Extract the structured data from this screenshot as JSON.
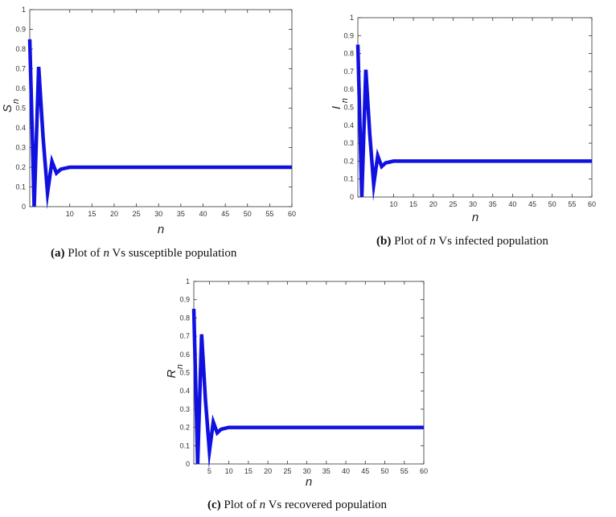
{
  "chart_data": [
    {
      "type": "line",
      "ylabel": "S",
      "ylabel_sub": "n",
      "xlabel": "n",
      "caption": {
        "tag": "(a)",
        "pre": "Plot of",
        "var": "n",
        "post": "Vs susceptible population"
      },
      "xlim": [
        1,
        60
      ],
      "ylim": [
        0,
        1
      ],
      "xticks": [
        10,
        15,
        20,
        25,
        30,
        35,
        40,
        45,
        50,
        55,
        60
      ],
      "yticks": [
        0,
        0.1,
        0.2,
        0.3,
        0.4,
        0.5,
        0.6,
        0.7,
        0.8,
        0.9,
        1
      ],
      "color": "#1010e0",
      "series": [
        {
          "x": [
            1,
            2,
            3,
            4,
            5,
            6,
            7,
            8,
            9,
            10,
            11,
            12,
            15,
            20,
            30,
            40,
            50,
            60
          ],
          "values": [
            0.85,
            0.0,
            0.71,
            0.35,
            0.07,
            0.23,
            0.17,
            0.19,
            0.195,
            0.2,
            0.2,
            0.2,
            0.2,
            0.2,
            0.2,
            0.2,
            0.2,
            0.2
          ]
        }
      ]
    },
    {
      "type": "line",
      "ylabel": "I",
      "ylabel_sub": "n",
      "xlabel": "n",
      "caption": {
        "tag": "(b)",
        "pre": "Plot of",
        "var": "n",
        "post": "Vs infected population"
      },
      "xlim": [
        1,
        60
      ],
      "ylim": [
        0,
        1
      ],
      "xticks": [
        10,
        15,
        20,
        25,
        30,
        35,
        40,
        45,
        50,
        55,
        60
      ],
      "yticks": [
        0,
        0.1,
        0.2,
        0.3,
        0.4,
        0.5,
        0.6,
        0.7,
        0.8,
        0.9,
        1
      ],
      "color": "#1010e0",
      "series": [
        {
          "x": [
            1,
            2,
            3,
            4,
            5,
            6,
            7,
            8,
            9,
            10,
            11,
            12,
            15,
            20,
            30,
            40,
            50,
            60
          ],
          "values": [
            0.85,
            0.0,
            0.71,
            0.35,
            0.07,
            0.23,
            0.17,
            0.19,
            0.195,
            0.2,
            0.2,
            0.2,
            0.2,
            0.2,
            0.2,
            0.2,
            0.2,
            0.2
          ]
        }
      ]
    },
    {
      "type": "line",
      "ylabel": "R",
      "ylabel_sub": "n",
      "xlabel": "n",
      "caption": {
        "tag": "(c)",
        "pre": "Plot of",
        "var": "n",
        "post": "Vs recovered population"
      },
      "xlim": [
        1,
        60
      ],
      "ylim": [
        0,
        1
      ],
      "xticks": [
        5,
        10,
        15,
        20,
        25,
        30,
        35,
        40,
        45,
        50,
        55,
        60
      ],
      "yticks": [
        0,
        0.1,
        0.2,
        0.3,
        0.4,
        0.5,
        0.6,
        0.7,
        0.8,
        0.9,
        1
      ],
      "color": "#1010e0",
      "series": [
        {
          "x": [
            1,
            2,
            3,
            4,
            5,
            6,
            7,
            8,
            9,
            10,
            11,
            12,
            15,
            20,
            30,
            40,
            50,
            60
          ],
          "values": [
            0.85,
            0.0,
            0.71,
            0.35,
            0.07,
            0.23,
            0.17,
            0.19,
            0.195,
            0.2,
            0.2,
            0.2,
            0.2,
            0.2,
            0.2,
            0.2,
            0.2,
            0.2
          ]
        }
      ]
    }
  ]
}
